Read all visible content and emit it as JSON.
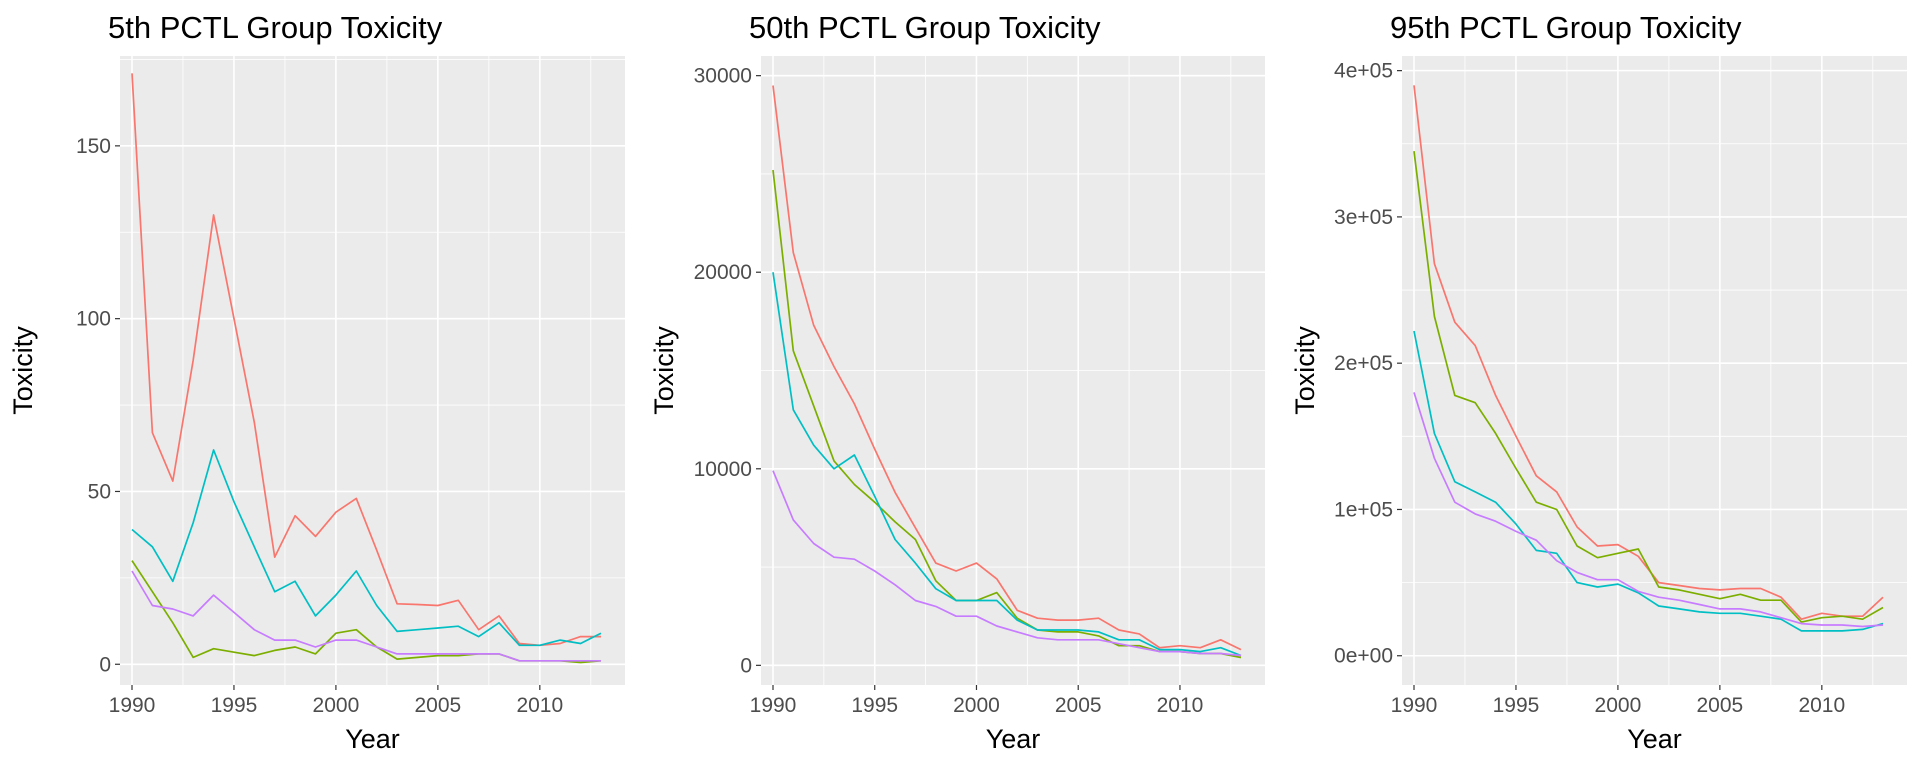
{
  "chart_data": [
    {
      "type": "line",
      "title": "5th PCTL Group Toxicity",
      "xlabel": "Year",
      "ylabel": "Toxicity",
      "xlim": [
        1990,
        2013
      ],
      "ylim": [
        -6,
        176
      ],
      "xticks": [
        1990,
        1995,
        2000,
        2005,
        2010
      ],
      "xtick_labels": [
        "1990",
        "1995",
        "2000",
        "2005",
        "2010"
      ],
      "yticks": [
        0,
        50,
        100,
        150
      ],
      "ytick_labels": [
        "0",
        "50",
        "100",
        "150"
      ],
      "grid": true,
      "x": [
        1990,
        1991,
        1992,
        1993,
        1994,
        1995,
        1996,
        1997,
        1998,
        1999,
        2000,
        2001,
        2002,
        2003,
        2004,
        2005,
        2006,
        2007,
        2008,
        2009,
        2010,
        2011,
        2012,
        2013
      ],
      "series": [
        {
          "color": "#F8766D",
          "values": [
            171,
            67,
            53,
            88,
            130,
            100,
            70,
            31,
            43,
            37,
            44,
            48,
            33,
            17.5,
            17.3,
            17,
            18.5,
            10,
            14,
            6,
            5.5,
            6,
            8,
            8
          ]
        },
        {
          "color": "#7CAE00",
          "values": [
            30,
            21,
            12,
            2,
            4.5,
            3.5,
            2.5,
            4,
            5,
            3,
            9,
            10,
            5,
            1.5,
            2,
            2.5,
            2.5,
            3,
            3,
            1,
            1,
            1,
            0.5,
            1
          ]
        },
        {
          "color": "#00BFC4",
          "values": [
            39,
            34,
            24,
            41,
            62,
            47,
            34,
            21,
            24,
            14,
            20,
            27,
            17,
            9.5,
            10,
            10.5,
            11,
            8,
            12,
            5.5,
            5.5,
            7,
            6,
            9
          ]
        },
        {
          "color": "#C77CFF",
          "values": [
            27,
            17,
            16,
            14,
            20,
            15,
            10,
            7,
            7,
            5,
            7,
            7,
            5,
            3,
            3,
            3,
            3,
            3,
            3,
            1,
            1,
            1,
            1,
            1
          ]
        }
      ]
    },
    {
      "type": "line",
      "title": "50th PCTL Group Toxicity",
      "xlabel": "Year",
      "ylabel": "Toxicity",
      "xlim": [
        1990,
        2013
      ],
      "ylim": [
        -1000,
        31000
      ],
      "xticks": [
        1990,
        1995,
        2000,
        2005,
        2010
      ],
      "xtick_labels": [
        "1990",
        "1995",
        "2000",
        "2005",
        "2010"
      ],
      "yticks": [
        0,
        10000,
        20000,
        30000
      ],
      "ytick_labels": [
        "0",
        "10000",
        "20000",
        "30000"
      ],
      "grid": true,
      "x": [
        1990,
        1991,
        1992,
        1993,
        1994,
        1995,
        1996,
        1997,
        1998,
        1999,
        2000,
        2001,
        2002,
        2003,
        2004,
        2005,
        2006,
        2007,
        2008,
        2009,
        2010,
        2011,
        2012,
        2013
      ],
      "series": [
        {
          "color": "#F8766D",
          "values": [
            29500,
            21000,
            17300,
            15200,
            13300,
            11000,
            8800,
            7000,
            5200,
            4800,
            5200,
            4400,
            2800,
            2400,
            2300,
            2300,
            2400,
            1800,
            1600,
            900,
            1000,
            900,
            1300,
            800
          ]
        },
        {
          "color": "#7CAE00",
          "values": [
            25200,
            16000,
            13200,
            10400,
            9200,
            8300,
            7300,
            6400,
            4300,
            3300,
            3300,
            3700,
            2400,
            1800,
            1700,
            1700,
            1500,
            1000,
            1000,
            700,
            700,
            600,
            600,
            400
          ]
        },
        {
          "color": "#00BFC4",
          "values": [
            20000,
            13000,
            11200,
            10000,
            10700,
            8600,
            6400,
            5200,
            3900,
            3300,
            3300,
            3300,
            2300,
            1800,
            1800,
            1800,
            1700,
            1300,
            1300,
            800,
            800,
            700,
            900,
            500
          ]
        },
        {
          "color": "#C77CFF",
          "values": [
            9900,
            7400,
            6200,
            5500,
            5400,
            4800,
            4100,
            3300,
            3000,
            2500,
            2500,
            2000,
            1700,
            1400,
            1300,
            1300,
            1300,
            1100,
            900,
            700,
            700,
            600,
            600,
            500
          ]
        }
      ]
    },
    {
      "type": "line",
      "title": "95th PCTL Group Toxicity",
      "xlabel": "Year",
      "ylabel": "Toxicity",
      "xlim": [
        1990,
        2013
      ],
      "ylim": [
        -20000,
        410000
      ],
      "xticks": [
        1990,
        1995,
        2000,
        2005,
        2010
      ],
      "xtick_labels": [
        "1990",
        "1995",
        "2000",
        "2005",
        "2010"
      ],
      "yticks": [
        0,
        100000,
        200000,
        300000,
        400000
      ],
      "ytick_labels": [
        "0e+00",
        "1e+05",
        "2e+05",
        "3e+05",
        "4e+05"
      ],
      "grid": true,
      "x": [
        1990,
        1991,
        1992,
        1993,
        1994,
        1995,
        1996,
        1997,
        1998,
        1999,
        2000,
        2001,
        2002,
        2003,
        2004,
        2005,
        2006,
        2007,
        2008,
        2009,
        2010,
        2011,
        2012,
        2013
      ],
      "series": [
        {
          "color": "#F8766D",
          "values": [
            390000,
            268000,
            228000,
            212000,
            178000,
            150000,
            123000,
            112000,
            88000,
            75000,
            76000,
            68000,
            50000,
            48000,
            46000,
            45000,
            46000,
            46000,
            40000,
            25000,
            29000,
            27000,
            27000,
            40000
          ]
        },
        {
          "color": "#7CAE00",
          "values": [
            345000,
            232000,
            178000,
            173000,
            152000,
            128000,
            105000,
            100000,
            75000,
            67000,
            70000,
            73000,
            47000,
            45000,
            42000,
            39000,
            42000,
            38000,
            38000,
            23000,
            26000,
            27000,
            25000,
            33000
          ]
        },
        {
          "color": "#00BFC4",
          "values": [
            222000,
            152000,
            119000,
            112000,
            105000,
            90000,
            72000,
            70000,
            50000,
            47000,
            49000,
            43000,
            34000,
            32000,
            30000,
            29000,
            29000,
            27000,
            25000,
            17000,
            17000,
            17000,
            18000,
            22000
          ]
        },
        {
          "color": "#C77CFF",
          "values": [
            180000,
            135000,
            105000,
            97000,
            92000,
            85000,
            79000,
            65000,
            57000,
            52000,
            52000,
            44000,
            40000,
            38000,
            35000,
            32000,
            32000,
            30000,
            26000,
            22000,
            21000,
            21000,
            20000,
            21000
          ]
        }
      ]
    }
  ]
}
